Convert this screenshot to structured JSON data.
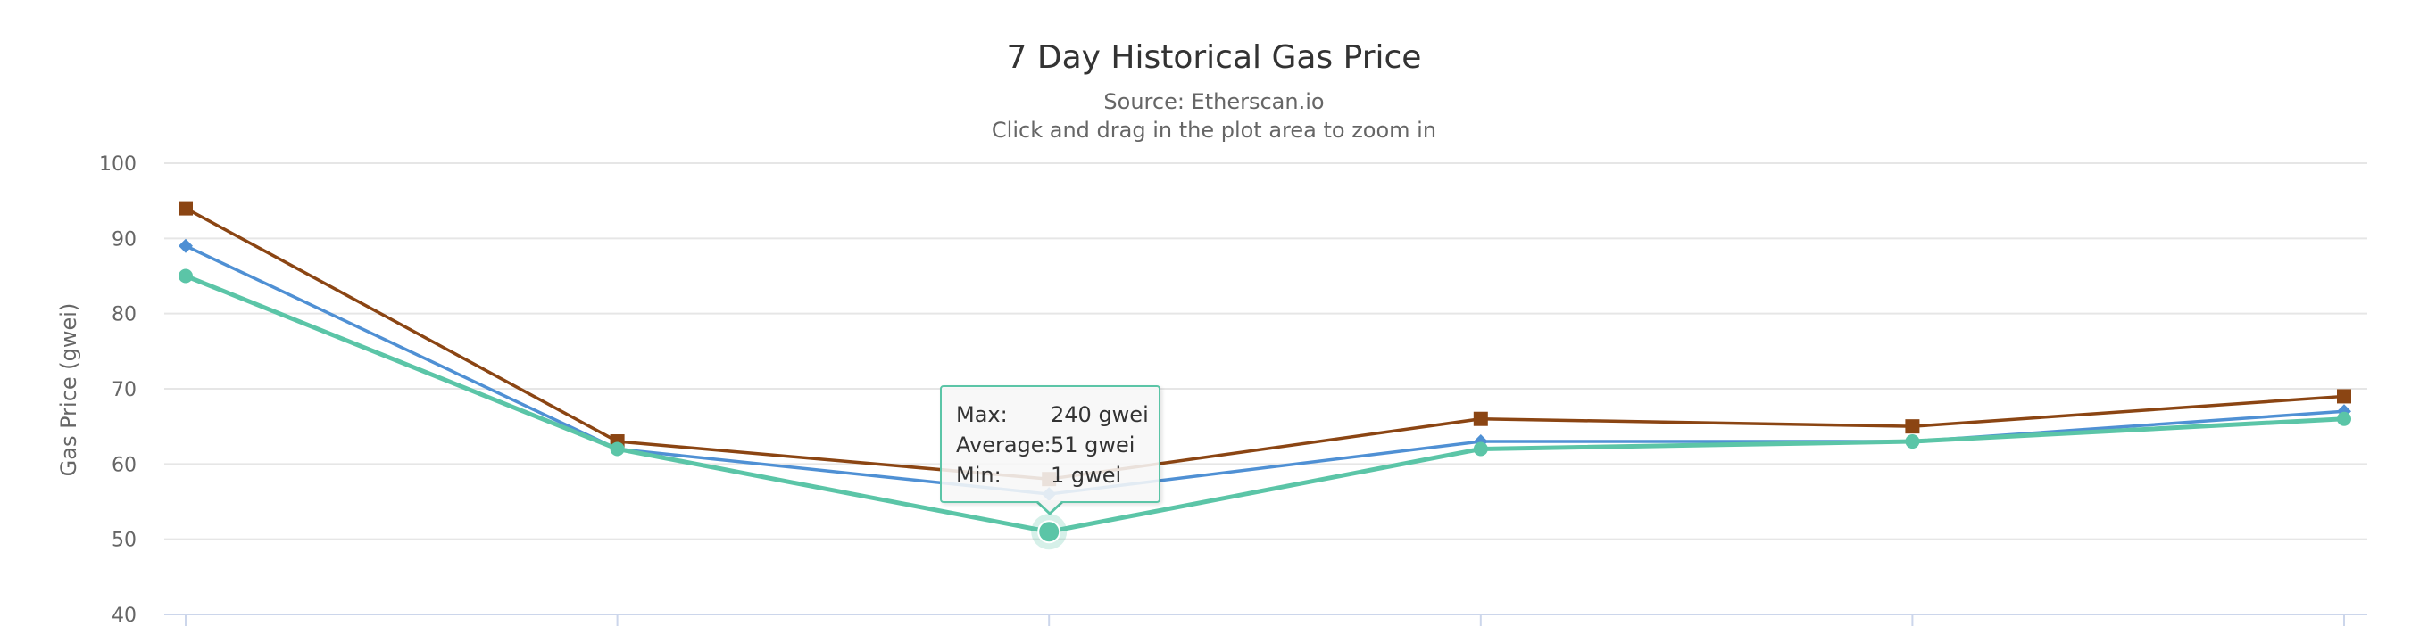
{
  "header": {
    "title": "7 Day Historical Gas Price",
    "subtitle_source": "Source: Etherscan.io",
    "subtitle_hint": "Click and drag in the plot area to zoom in"
  },
  "tooltip": {
    "rows": [
      {
        "label": "Max:",
        "value": "240 gwei"
      },
      {
        "label": "Average:",
        "value": "51 gwei"
      },
      {
        "label": "Min:",
        "value": "1 gwei"
      }
    ],
    "border_color": "#5bc5a7"
  },
  "colors": {
    "series_brown": "#8b4513",
    "series_blue": "#4f90d4",
    "series_green": "#5bc5a7",
    "grid": "#e6e6e6",
    "axis": "#ccd6eb",
    "axis_label": "#666666",
    "title": "#333333"
  },
  "chart_data": {
    "type": "line",
    "title": "7 Day Historical Gas Price",
    "subtitle": "Source: Etherscan.io / Click and drag in the plot area to zoom in",
    "xlabel": "",
    "ylabel": "Gas Price (gwei)",
    "ylim": [
      40,
      100
    ],
    "yticks": [
      100,
      90,
      80,
      70,
      60,
      50,
      40
    ],
    "grid": true,
    "x": [
      1,
      2,
      3,
      4,
      5,
      6
    ],
    "series": [
      {
        "name": "brown-square-series",
        "marker": "square",
        "color": "#8b4513",
        "values": [
          94,
          63,
          58,
          66,
          65,
          69
        ]
      },
      {
        "name": "blue-diamond-series",
        "marker": "diamond",
        "color": "#4f90d4",
        "values": [
          89,
          62,
          56,
          63,
          63,
          67
        ]
      },
      {
        "name": "green-circle-series",
        "marker": "circle",
        "color": "#5bc5a7",
        "values": [
          85,
          62,
          51,
          62,
          63,
          66
        ]
      }
    ],
    "hovered_point": {
      "series": "green-circle-series",
      "index": 2,
      "value": 51
    }
  }
}
